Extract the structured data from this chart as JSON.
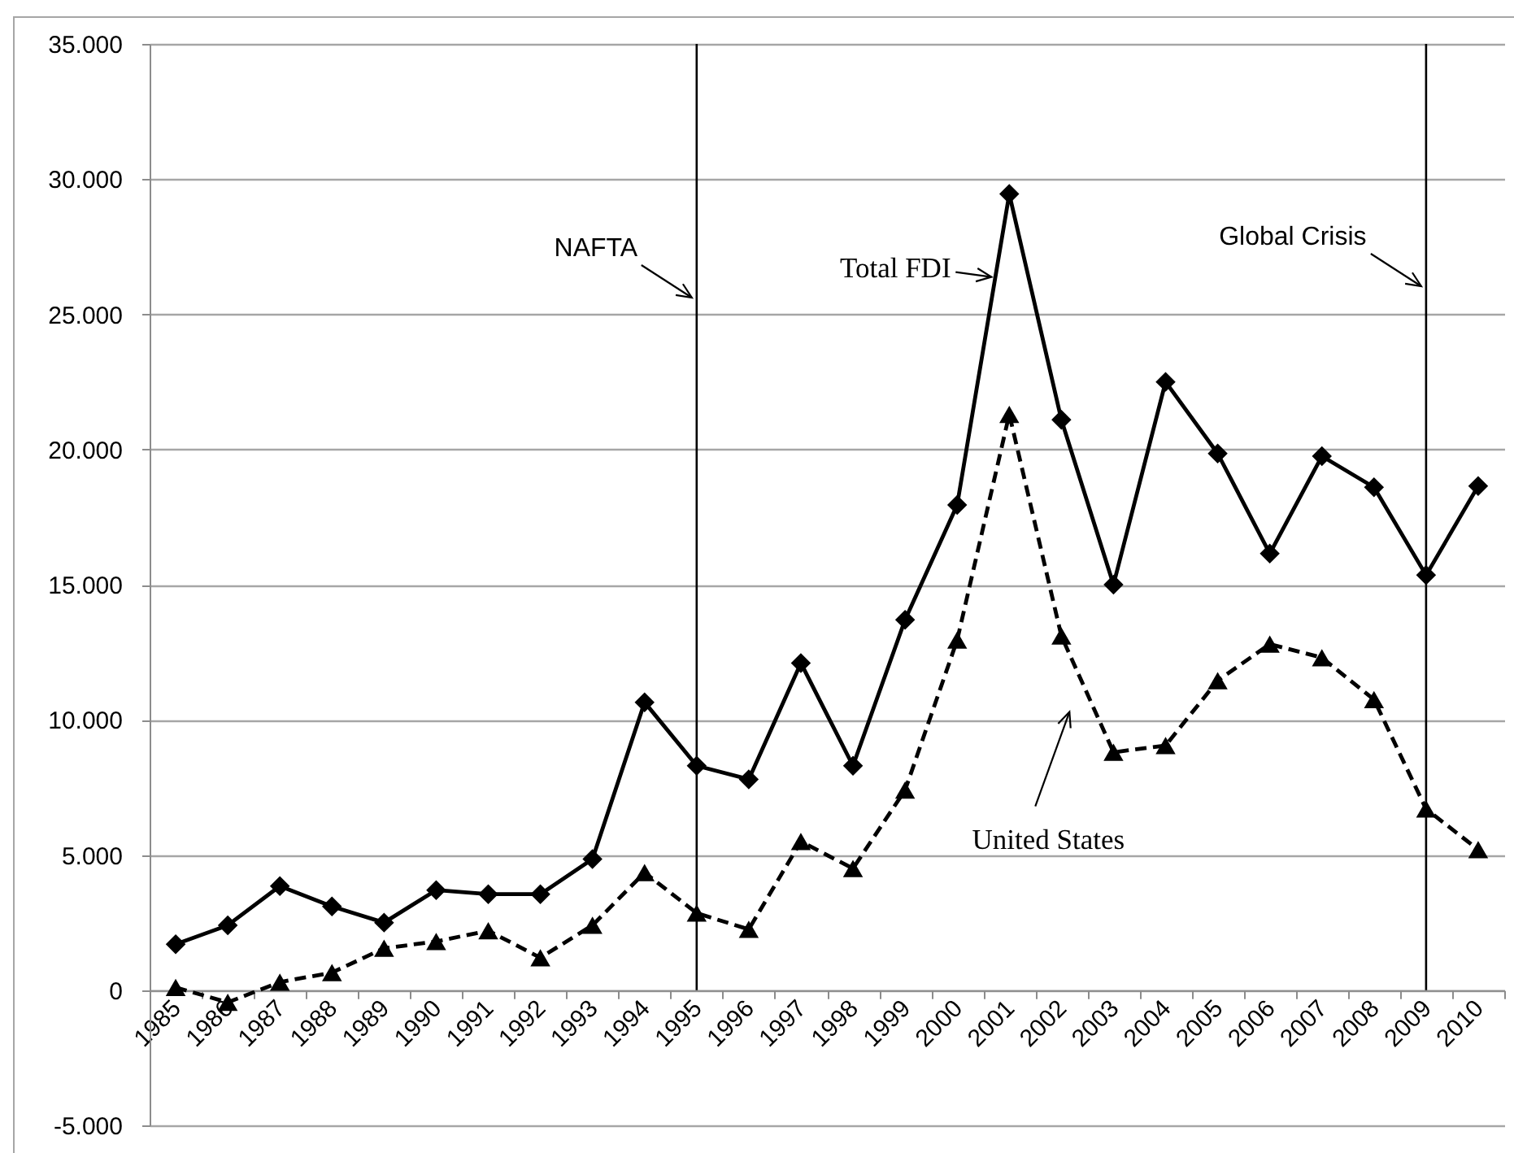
{
  "chart_data": {
    "type": "line",
    "categories": [
      "1985",
      "1986",
      "1987",
      "1988",
      "1989",
      "1990",
      "1991",
      "1992",
      "1993",
      "1994",
      "1995",
      "1996",
      "1997",
      "1998",
      "1999",
      "2000",
      "2001",
      "2002",
      "2003",
      "2004",
      "2005",
      "2006",
      "2007",
      "2008",
      "2009",
      "2010"
    ],
    "series": [
      {
        "name": "Total FDI",
        "color": "#000000",
        "marker": "diamond",
        "line_style": "solid",
        "values": [
          1700,
          2400,
          3850,
          3100,
          2500,
          3700,
          3550,
          3550,
          4850,
          10650,
          8300,
          7800,
          12100,
          8300,
          13700,
          17950,
          29450,
          21100,
          15000,
          22500,
          19850,
          16150,
          19750,
          18600,
          15350,
          18650
        ]
      },
      {
        "name": "United States",
        "color": "#000000",
        "marker": "triangle",
        "line_style": "dashed",
        "values": [
          100,
          -450,
          300,
          650,
          1550,
          1800,
          2200,
          1200,
          2400,
          4350,
          2850,
          2250,
          5500,
          4500,
          7400,
          12950,
          21300,
          13100,
          8800,
          9050,
          11450,
          12800,
          12300,
          10750,
          6700,
          5200
        ]
      }
    ],
    "ylim": [
      -5000,
      35000
    ],
    "yticks": [
      {
        "value": -5000,
        "label": "-5.000"
      },
      0,
      {
        "value": 5000,
        "label": "5.000"
      },
      {
        "value": 10000,
        "label": "10.000"
      },
      {
        "value": 15000,
        "label": "15.000"
      },
      {
        "value": 20000,
        "label": "20.000"
      },
      {
        "value": 25000,
        "label": "25.000"
      },
      {
        "value": 30000,
        "label": "30.000"
      },
      {
        "value": 35000,
        "label": "35.000"
      }
    ],
    "grid": "y",
    "ref_lines": [
      {
        "axis": "x",
        "value": "1995",
        "label": "NAFTA",
        "color": "#000000"
      },
      {
        "axis": "x",
        "value": "2009",
        "label": "Global Crisis",
        "color": "#000000"
      }
    ]
  }
}
